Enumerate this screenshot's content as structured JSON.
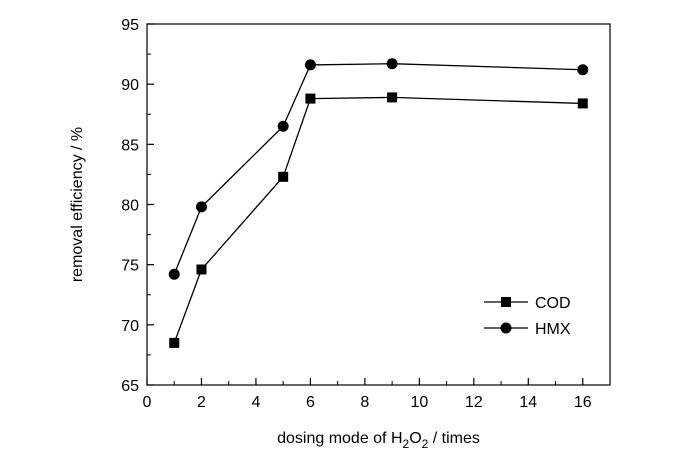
{
  "chart_data": {
    "type": "line",
    "title": "",
    "xlabel_parts": [
      "dosing mode of H",
      "2",
      "O",
      "2",
      "  / times"
    ],
    "ylabel": "removal efficiency / %",
    "xlim": [
      0,
      17
    ],
    "ylim": [
      65,
      95
    ],
    "xticks": [
      0,
      2,
      4,
      6,
      8,
      10,
      12,
      14,
      16
    ],
    "yticks": [
      65,
      70,
      75,
      80,
      85,
      90,
      95
    ],
    "grid": false,
    "legend_position": "bottom-right",
    "series": [
      {
        "name": "COD",
        "marker": "square",
        "x": [
          1,
          2,
          5,
          6,
          9,
          16
        ],
        "y": [
          68.5,
          74.6,
          82.3,
          88.8,
          88.9,
          88.4
        ]
      },
      {
        "name": "HMX",
        "marker": "circle",
        "x": [
          1,
          2,
          5,
          6,
          9,
          16
        ],
        "y": [
          74.2,
          79.8,
          86.5,
          91.6,
          91.7,
          91.2
        ]
      }
    ]
  }
}
